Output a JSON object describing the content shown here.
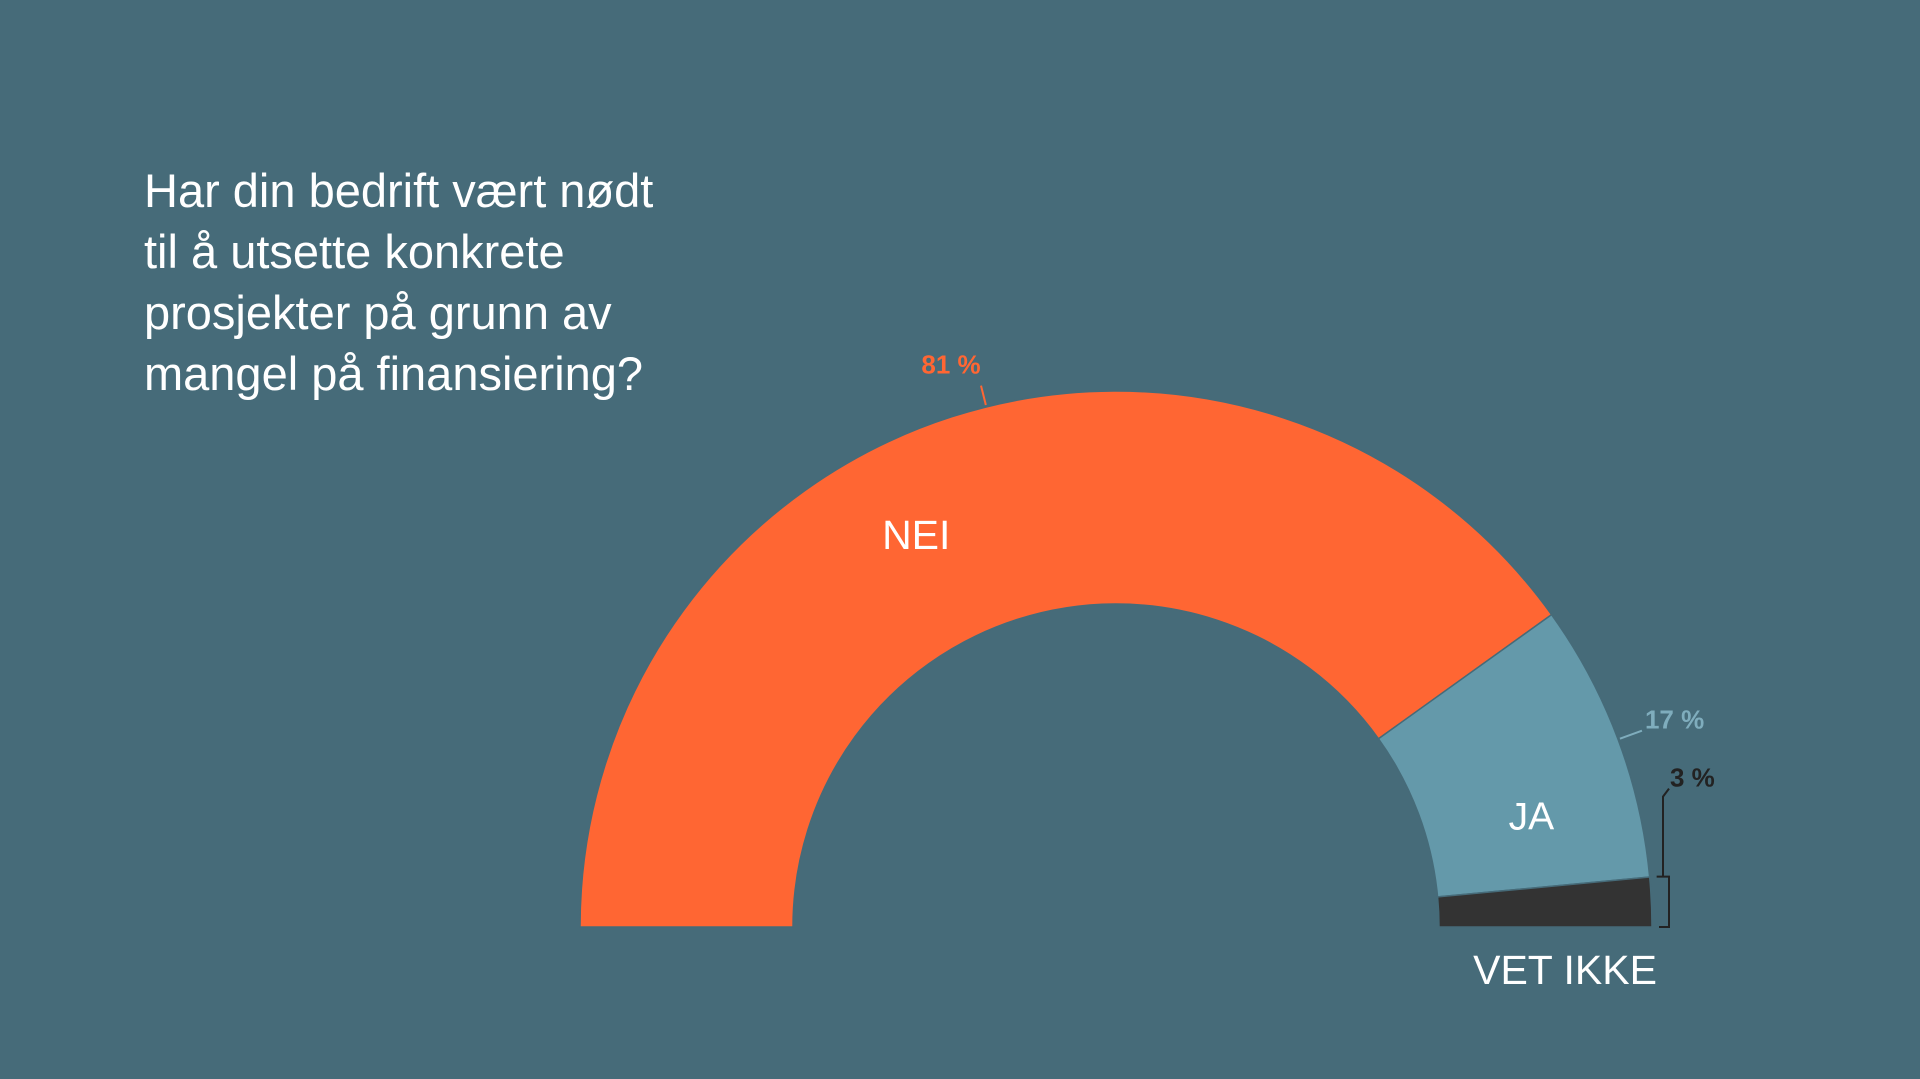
{
  "question": {
    "lines": [
      "Har din bedrift vært nødt",
      "til å utsette konkrete",
      "prosjekter på grunn av",
      "mangel på finansiering?"
    ]
  },
  "colors": {
    "background": "#466b79",
    "nei": "#ff6633",
    "ja": "#6499aa",
    "vet_ikke": "#333333",
    "text": "#ffffff"
  },
  "chart_data": {
    "type": "pie",
    "subtype": "half-donut",
    "title": "Har din bedrift vært nødt til å utsette konkrete prosjekter på grunn av mangel på finansiering?",
    "categories": [
      "NEI",
      "JA",
      "VET IKKE"
    ],
    "values": [
      81,
      17,
      3
    ],
    "value_labels": [
      "81 %",
      "17 %",
      "3 %"
    ],
    "unit": "%"
  }
}
